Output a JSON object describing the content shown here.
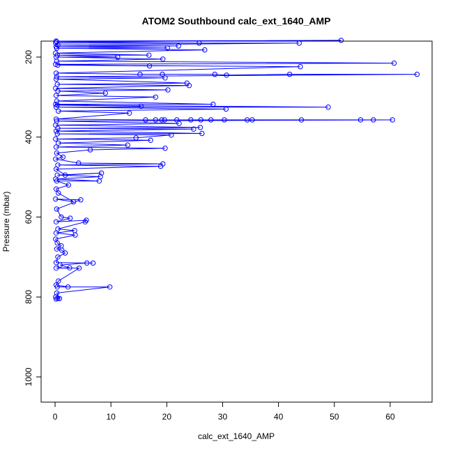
{
  "chart_data": {
    "type": "scatter",
    "title": "ATOM2 Southbound calc_ext_1640_AMP",
    "xlabel": "calc_ext_1640_AMP",
    "ylabel": "Pressure (mbar)",
    "xlim": [
      -2.5,
      67.5
    ],
    "ylim": [
      1063,
      160
    ],
    "y_reversed": true,
    "x_ticks": [
      0,
      10,
      20,
      30,
      40,
      50,
      60
    ],
    "y_ticks": [
      200,
      400,
      600,
      800,
      1000
    ],
    "grid": false,
    "color": "#0000ff",
    "series": [
      {
        "style": "points-and-lines",
        "points": [
          [
            0.2,
            805
          ],
          [
            0.5,
            803
          ],
          [
            0.1,
            800
          ],
          [
            0.8,
            804
          ],
          [
            0.3,
            790
          ],
          [
            9.8,
            775
          ],
          [
            0.4,
            775
          ],
          [
            2.3,
            775
          ],
          [
            0.2,
            770
          ],
          [
            0.6,
            760
          ],
          [
            4.3,
            728
          ],
          [
            0.2,
            728
          ],
          [
            2.6,
            727
          ],
          [
            0.9,
            720
          ],
          [
            5.7,
            715
          ],
          [
            6.8,
            715
          ],
          [
            0.2,
            714
          ],
          [
            0.5,
            700
          ],
          [
            1.8,
            690
          ],
          [
            1.2,
            683
          ],
          [
            0.3,
            680
          ],
          [
            1.1,
            672
          ],
          [
            0.4,
            665
          ],
          [
            0.1,
            655
          ],
          [
            3.6,
            645
          ],
          [
            0.2,
            640
          ],
          [
            3.5,
            634
          ],
          [
            0.5,
            630
          ],
          [
            5.4,
            612
          ],
          [
            5.6,
            608
          ],
          [
            0.2,
            612
          ],
          [
            2.7,
            603
          ],
          [
            1.1,
            600
          ],
          [
            0.3,
            580
          ],
          [
            4.6,
            557
          ],
          [
            0.1,
            555
          ],
          [
            3.3,
            562
          ],
          [
            0.6,
            540
          ],
          [
            0.2,
            530
          ],
          [
            2.4,
            520
          ],
          [
            0.3,
            510
          ],
          [
            7.9,
            510
          ],
          [
            0.1,
            505
          ],
          [
            8.1,
            499
          ],
          [
            0.4,
            495
          ],
          [
            8.3,
            490
          ],
          [
            1.8,
            495
          ],
          [
            0.2,
            480
          ],
          [
            18.9,
            473
          ],
          [
            0.5,
            470
          ],
          [
            19.3,
            467
          ],
          [
            4.2,
            465
          ],
          [
            0.1,
            455
          ],
          [
            1.4,
            450
          ],
          [
            0.3,
            440
          ],
          [
            6.3,
            432
          ],
          [
            19.7,
            428
          ],
          [
            0.2,
            425
          ],
          [
            13.0,
            420
          ],
          [
            0.6,
            415
          ],
          [
            17.1,
            408
          ],
          [
            0.1,
            405
          ],
          [
            14.5,
            402
          ],
          [
            20.8,
            395
          ],
          [
            0.4,
            392
          ],
          [
            26.3,
            391
          ],
          [
            0.2,
            385
          ],
          [
            24.8,
            380
          ],
          [
            0.5,
            378
          ],
          [
            26.0,
            376
          ],
          [
            0.1,
            370
          ],
          [
            22.2,
            366
          ],
          [
            0.3,
            360
          ],
          [
            60.4,
            357
          ],
          [
            57.0,
            357
          ],
          [
            54.7,
            357
          ],
          [
            44.1,
            357
          ],
          [
            35.3,
            357
          ],
          [
            34.4,
            357
          ],
          [
            30.3,
            357
          ],
          [
            27.9,
            357
          ],
          [
            26.1,
            357
          ],
          [
            24.3,
            357
          ],
          [
            21.8,
            357
          ],
          [
            19.6,
            357
          ],
          [
            19.1,
            357
          ],
          [
            18.0,
            357
          ],
          [
            16.2,
            357
          ],
          [
            0.2,
            355
          ],
          [
            13.3,
            340
          ],
          [
            0.6,
            335
          ],
          [
            30.6,
            330
          ],
          [
            0.2,
            325
          ],
          [
            48.9,
            325
          ],
          [
            0.4,
            320
          ],
          [
            15.4,
            323
          ],
          [
            0.1,
            318
          ],
          [
            28.3,
            318
          ],
          [
            0.3,
            310
          ],
          [
            18.0,
            300
          ],
          [
            0.2,
            296
          ],
          [
            9.0,
            290
          ],
          [
            0.5,
            285
          ],
          [
            20.2,
            282
          ],
          [
            0.1,
            278
          ],
          [
            24.0,
            271
          ],
          [
            0.4,
            268
          ],
          [
            23.6,
            265
          ],
          [
            0.2,
            255
          ],
          [
            19.7,
            252
          ],
          [
            0.3,
            249
          ],
          [
            64.8,
            243
          ],
          [
            42.0,
            243
          ],
          [
            30.7,
            245
          ],
          [
            28.6,
            243
          ],
          [
            19.2,
            243
          ],
          [
            15.2,
            243
          ],
          [
            0.2,
            240
          ],
          [
            43.9,
            224
          ],
          [
            0.5,
            220
          ],
          [
            16.9,
            222
          ],
          [
            0.1,
            218
          ],
          [
            60.7,
            215
          ],
          [
            0.3,
            210
          ],
          [
            19.3,
            205
          ],
          [
            0.2,
            200
          ],
          [
            11.2,
            200
          ],
          [
            0.4,
            195
          ],
          [
            16.8,
            195
          ],
          [
            0.1,
            190
          ],
          [
            26.8,
            182
          ],
          [
            0.3,
            178
          ],
          [
            20.1,
            177
          ],
          [
            0.2,
            174
          ],
          [
            22.1,
            172
          ],
          [
            0.5,
            170
          ],
          [
            43.7,
            165
          ],
          [
            0.1,
            165
          ],
          [
            25.8,
            165
          ],
          [
            0.3,
            162
          ],
          [
            51.2,
            158
          ],
          [
            0.2,
            160
          ]
        ]
      }
    ]
  }
}
